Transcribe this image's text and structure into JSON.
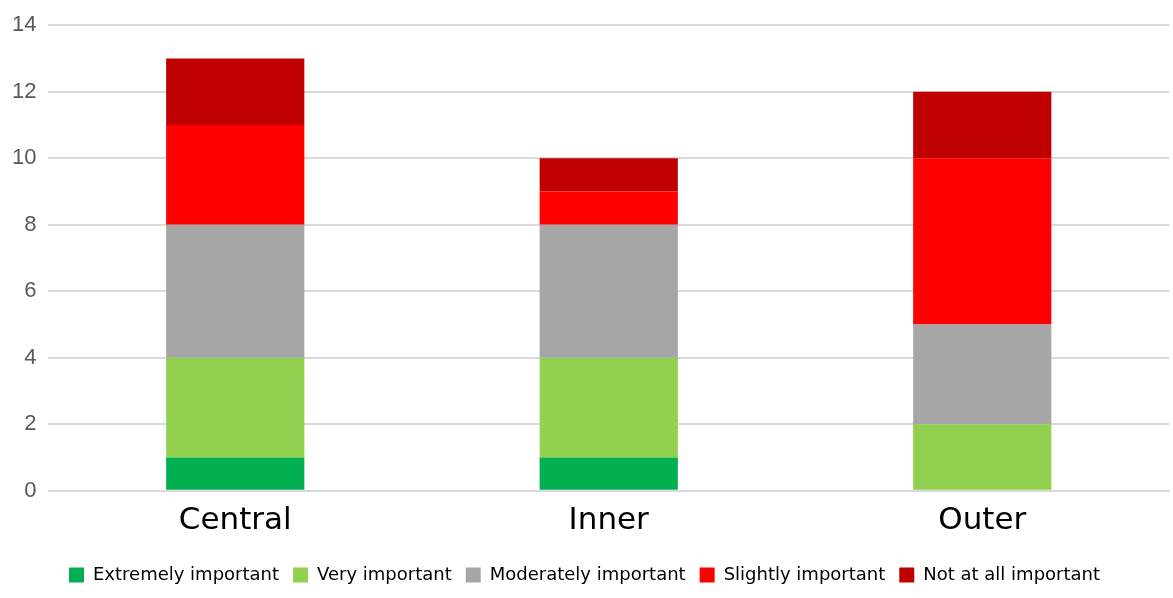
{
  "chart_data": {
    "type": "bar",
    "stacked": true,
    "categories": [
      "Central",
      "Inner",
      "Outer"
    ],
    "series": [
      {
        "name": "Extremely important",
        "color": "#00b050",
        "values": [
          1,
          1,
          0
        ]
      },
      {
        "name": "Very important",
        "color": "#92d050",
        "values": [
          3,
          3,
          2
        ]
      },
      {
        "name": "Moderately important",
        "color": "#a6a6a6",
        "values": [
          4,
          4,
          3
        ]
      },
      {
        "name": "Slightly important",
        "color": "#ff0000",
        "values": [
          3,
          1,
          5
        ]
      },
      {
        "name": "Not at all important",
        "color": "#c00000",
        "values": [
          2,
          1,
          2
        ]
      }
    ],
    "ylim": [
      0,
      14
    ],
    "yticks": [
      0,
      2,
      4,
      6,
      8,
      10,
      12,
      14
    ],
    "grid": "y",
    "legend": "bottom"
  }
}
